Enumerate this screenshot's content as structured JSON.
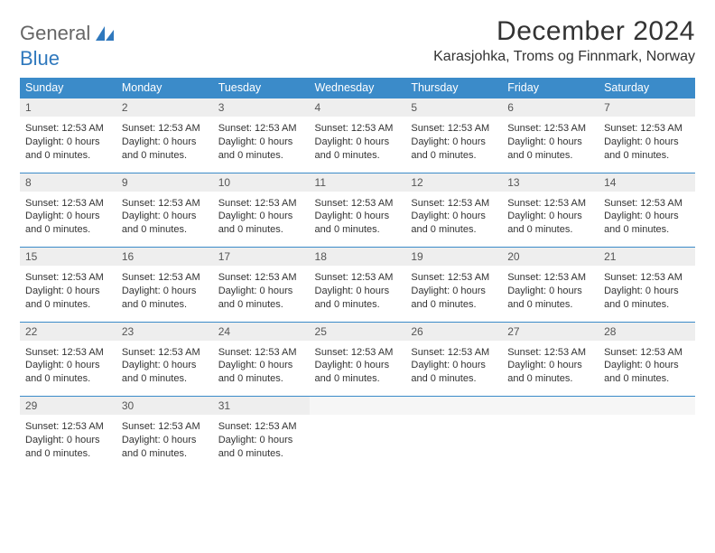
{
  "brand": {
    "word1": "General",
    "word2": "Blue"
  },
  "title": "December 2024",
  "location": "Karasjohka, Troms og Finnmark, Norway",
  "colors": {
    "header_bg": "#3b8bc9",
    "header_text": "#ffffff",
    "daynum_bg": "#eeeeee",
    "daynum_text": "#555555",
    "body_text": "#333333",
    "brand_gray": "#666666",
    "brand_blue": "#2f78bd",
    "rule": "#3b8bc9"
  },
  "typography": {
    "title_fontsize": 30,
    "location_fontsize": 16,
    "header_fontsize": 12.5,
    "daynum_fontsize": 12,
    "cell_fontsize": 11
  },
  "day_headers": [
    "Sunday",
    "Monday",
    "Tuesday",
    "Wednesday",
    "Thursday",
    "Friday",
    "Saturday"
  ],
  "default_cell": {
    "sunset_label": "Sunset:",
    "sunset_time": "12:53 AM",
    "daylight_label": "Daylight:",
    "daylight_value": "0 hours and 0 minutes."
  },
  "weeks": [
    [
      {
        "n": 1
      },
      {
        "n": 2
      },
      {
        "n": 3
      },
      {
        "n": 4
      },
      {
        "n": 5
      },
      {
        "n": 6
      },
      {
        "n": 7
      }
    ],
    [
      {
        "n": 8
      },
      {
        "n": 9
      },
      {
        "n": 10
      },
      {
        "n": 11
      },
      {
        "n": 12
      },
      {
        "n": 13
      },
      {
        "n": 14
      }
    ],
    [
      {
        "n": 15
      },
      {
        "n": 16
      },
      {
        "n": 17
      },
      {
        "n": 18
      },
      {
        "n": 19
      },
      {
        "n": 20
      },
      {
        "n": 21
      }
    ],
    [
      {
        "n": 22
      },
      {
        "n": 23
      },
      {
        "n": 24
      },
      {
        "n": 25
      },
      {
        "n": 26
      },
      {
        "n": 27
      },
      {
        "n": 28
      }
    ],
    [
      {
        "n": 29
      },
      {
        "n": 30
      },
      {
        "n": 31
      },
      null,
      null,
      null,
      null
    ]
  ]
}
